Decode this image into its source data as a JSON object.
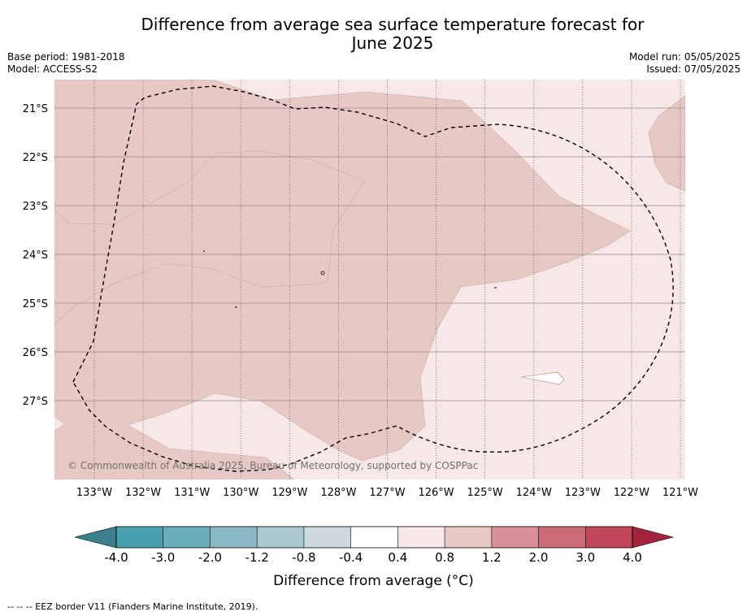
{
  "title": "Difference from average sea surface temperature forecast for June 2025",
  "title_line1": "Difference from average sea surface temperature forecast for",
  "title_line2": "June 2025",
  "base_period": "Base period: 1981-2018",
  "model": "Model: ACCESS-S2",
  "model_run": "Model run: 05/05/2025",
  "issued": "Issued: 07/05/2025",
  "attribution": "© Commonwealth of Australia 2025, Bureau of Meteorology, supported by COSPPac",
  "latitudes": [
    "21°S",
    "22°S",
    "23°S",
    "24°S",
    "25°S",
    "26°S",
    "27°S"
  ],
  "longitudes": [
    "133°W",
    "132°W",
    "131°W",
    "130°W",
    "129°W",
    "128°W",
    "127°W",
    "126°W",
    "125°W",
    "124°W",
    "123°W",
    "122°W",
    "121°W"
  ],
  "colorbar": {
    "ticks": [
      "-4.0",
      "-3.0",
      "-2.0",
      "-1.2",
      "-0.8",
      "-0.4",
      "0.4",
      "0.8",
      "1.2",
      "2.0",
      "3.0",
      "4.0"
    ],
    "colors": [
      "#4ba0b0",
      "#6aaebb",
      "#8ab8c4",
      "#a9c8cd",
      "#cdd9dc",
      "#ffffff",
      "#f5e8e7",
      "#e8c8c4",
      "#d9909a",
      "#cc6a78",
      "#c0475a"
    ],
    "under_color": "#3d808d",
    "over_color": "#a4243d",
    "label": "Difference from average (°C)"
  },
  "fill_colors": {
    "light": "#f5e8e7",
    "medium": "#e8c8c4",
    "white": "#ffffff"
  },
  "legend_footer": "-- -- -- EEZ border V11 (Flanders Marine Institute, 2019)."
}
